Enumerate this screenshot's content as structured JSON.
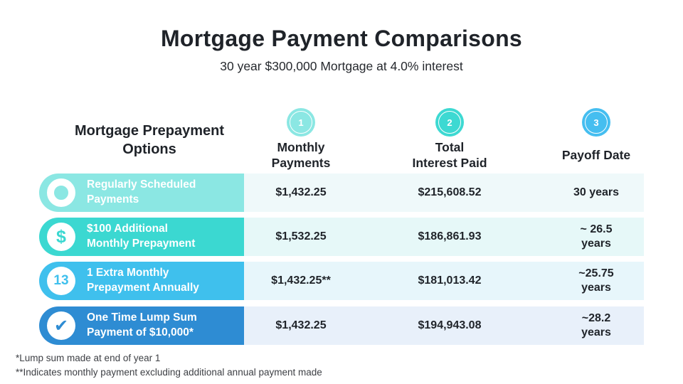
{
  "title": "Mortgage Payment Comparisons",
  "subtitle": "30 year $300,000 Mortgage at 4.0% interest",
  "colors": {
    "row1": "#8BE7E3",
    "row2": "#3BD8D1",
    "row3": "#3FC0ED",
    "row4": "#2E8CD3",
    "row1_bg": "#EFF9FA",
    "row2_bg": "#E6F8F8",
    "row3_bg": "#E7F6FB",
    "row4_bg": "#E8F0FA",
    "badge1": "#8BE7E3",
    "badge2": "#3DD9D2",
    "badge3": "#45BEF0"
  },
  "header": {
    "options_title_line1": "Mortgage Prepayment",
    "options_title_line2": "Options",
    "columns": [
      {
        "number": "1",
        "line1": "Monthly",
        "line2": "Payments"
      },
      {
        "number": "2",
        "line1": "Total",
        "line2": "Interest Paid"
      },
      {
        "number": "3",
        "line1": "Payoff Date",
        "line2": ""
      }
    ]
  },
  "rows": [
    {
      "icon": "ring-icon",
      "icon_glyph": "",
      "label_line1": "Regularly Scheduled",
      "label_line2": "Payments",
      "monthly": "$1,432.25",
      "interest": "$215,608.52",
      "payoff_line1": "30 years",
      "payoff_line2": ""
    },
    {
      "icon": "dollar-icon",
      "icon_glyph": "$",
      "label_line1": "$100 Additional",
      "label_line2": "Monthly Prepayment",
      "monthly": "$1,532.25",
      "interest": "$186,861.93",
      "payoff_line1": "~ 26.5",
      "payoff_line2": "years"
    },
    {
      "icon": "thirteen-icon",
      "icon_glyph": "13",
      "label_line1": "1 Extra Monthly",
      "label_line2": "Prepayment Annually",
      "monthly": "$1,432.25**",
      "interest": "$181,013.42",
      "payoff_line1": "~25.75",
      "payoff_line2": "years"
    },
    {
      "icon": "check-icon",
      "icon_glyph": "✔",
      "label_line1": "One Time Lump Sum",
      "label_line2": "Payment of $10,000*",
      "monthly": "$1,432.25",
      "interest": "$194,943.08",
      "payoff_line1": "~28.2",
      "payoff_line2": "years"
    }
  ],
  "footnotes": [
    "*Lump sum made at end of year 1",
    "**Indicates monthly payment excluding additional annual payment made"
  ],
  "chart_data": {
    "type": "table",
    "title": "Mortgage Payment Comparisons",
    "subtitle": "30 year $300,000 Mortgage at 4.0% interest",
    "columns": [
      "Mortgage Prepayment Options",
      "Monthly Payments",
      "Total Interest Paid",
      "Payoff Date"
    ],
    "rows": [
      [
        "Regularly Scheduled Payments",
        "$1,432.25",
        "$215,608.52",
        "30 years"
      ],
      [
        "$100 Additional Monthly Prepayment",
        "$1,532.25",
        "$186,861.93",
        "~ 26.5 years"
      ],
      [
        "1 Extra Monthly Prepayment Annually",
        "$1,432.25**",
        "$181,013.42",
        "~25.75 years"
      ],
      [
        "One Time Lump Sum Payment of $10,000*",
        "$1,432.25",
        "$194,943.08",
        "~28.2 years"
      ]
    ],
    "footnotes": [
      "*Lump sum made at end of year 1",
      "**Indicates monthly payment excluding additional annual payment made"
    ]
  }
}
